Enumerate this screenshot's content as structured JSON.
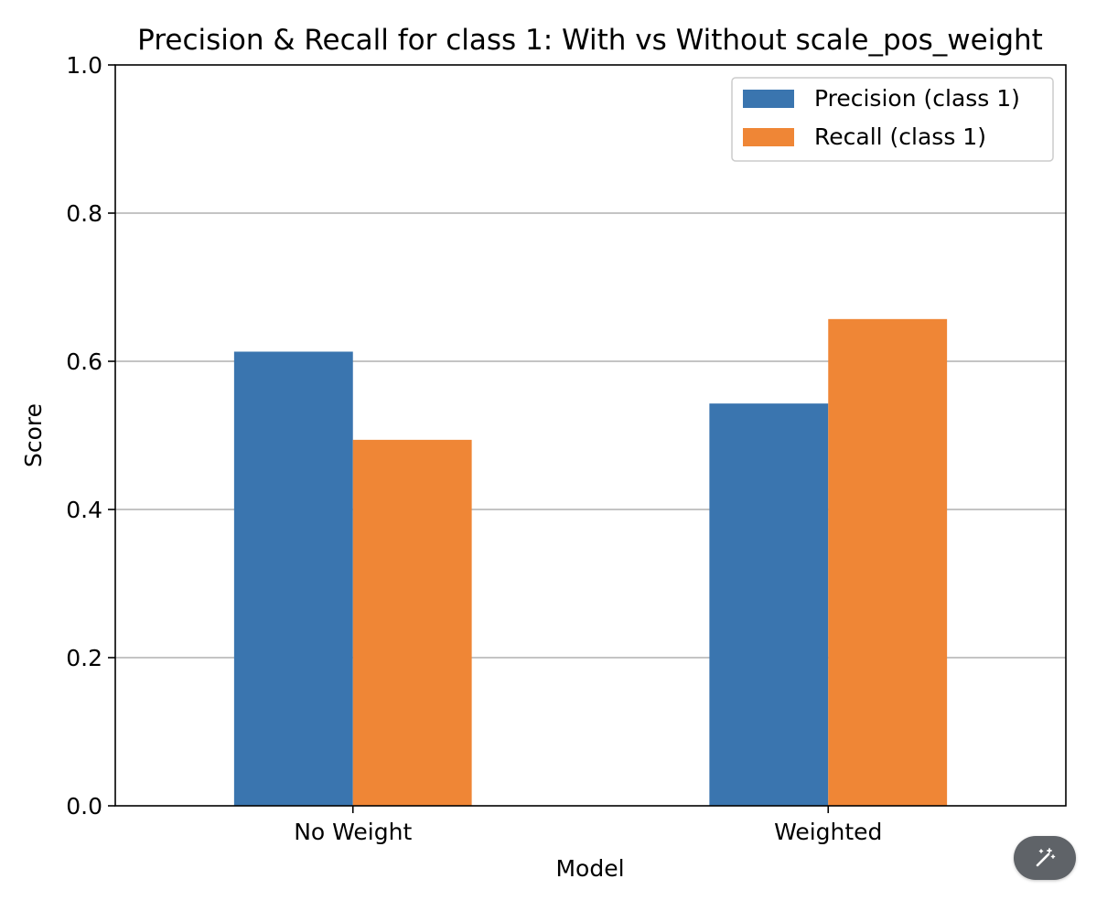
{
  "chart_data": {
    "type": "bar",
    "title": "Precision & Recall for class 1: With vs Without scale_pos_weight",
    "xlabel": "Model",
    "ylabel": "Score",
    "categories": [
      "No Weight",
      "Weighted"
    ],
    "ylim": [
      0,
      1.0
    ],
    "yticks": [
      "0.0",
      "0.2",
      "0.4",
      "0.6",
      "0.8",
      "1.0"
    ],
    "grid": "y",
    "legend_position": "top-right",
    "series": [
      {
        "name": "Precision (class 1)",
        "values": [
          0.613,
          0.543
        ],
        "color": "#3a75af"
      },
      {
        "name": "Recall (class 1)",
        "values": [
          0.494,
          0.657
        ],
        "color": "#ef8636"
      }
    ]
  },
  "toolbar": {
    "magic_icon": "magic-wand-icon"
  }
}
